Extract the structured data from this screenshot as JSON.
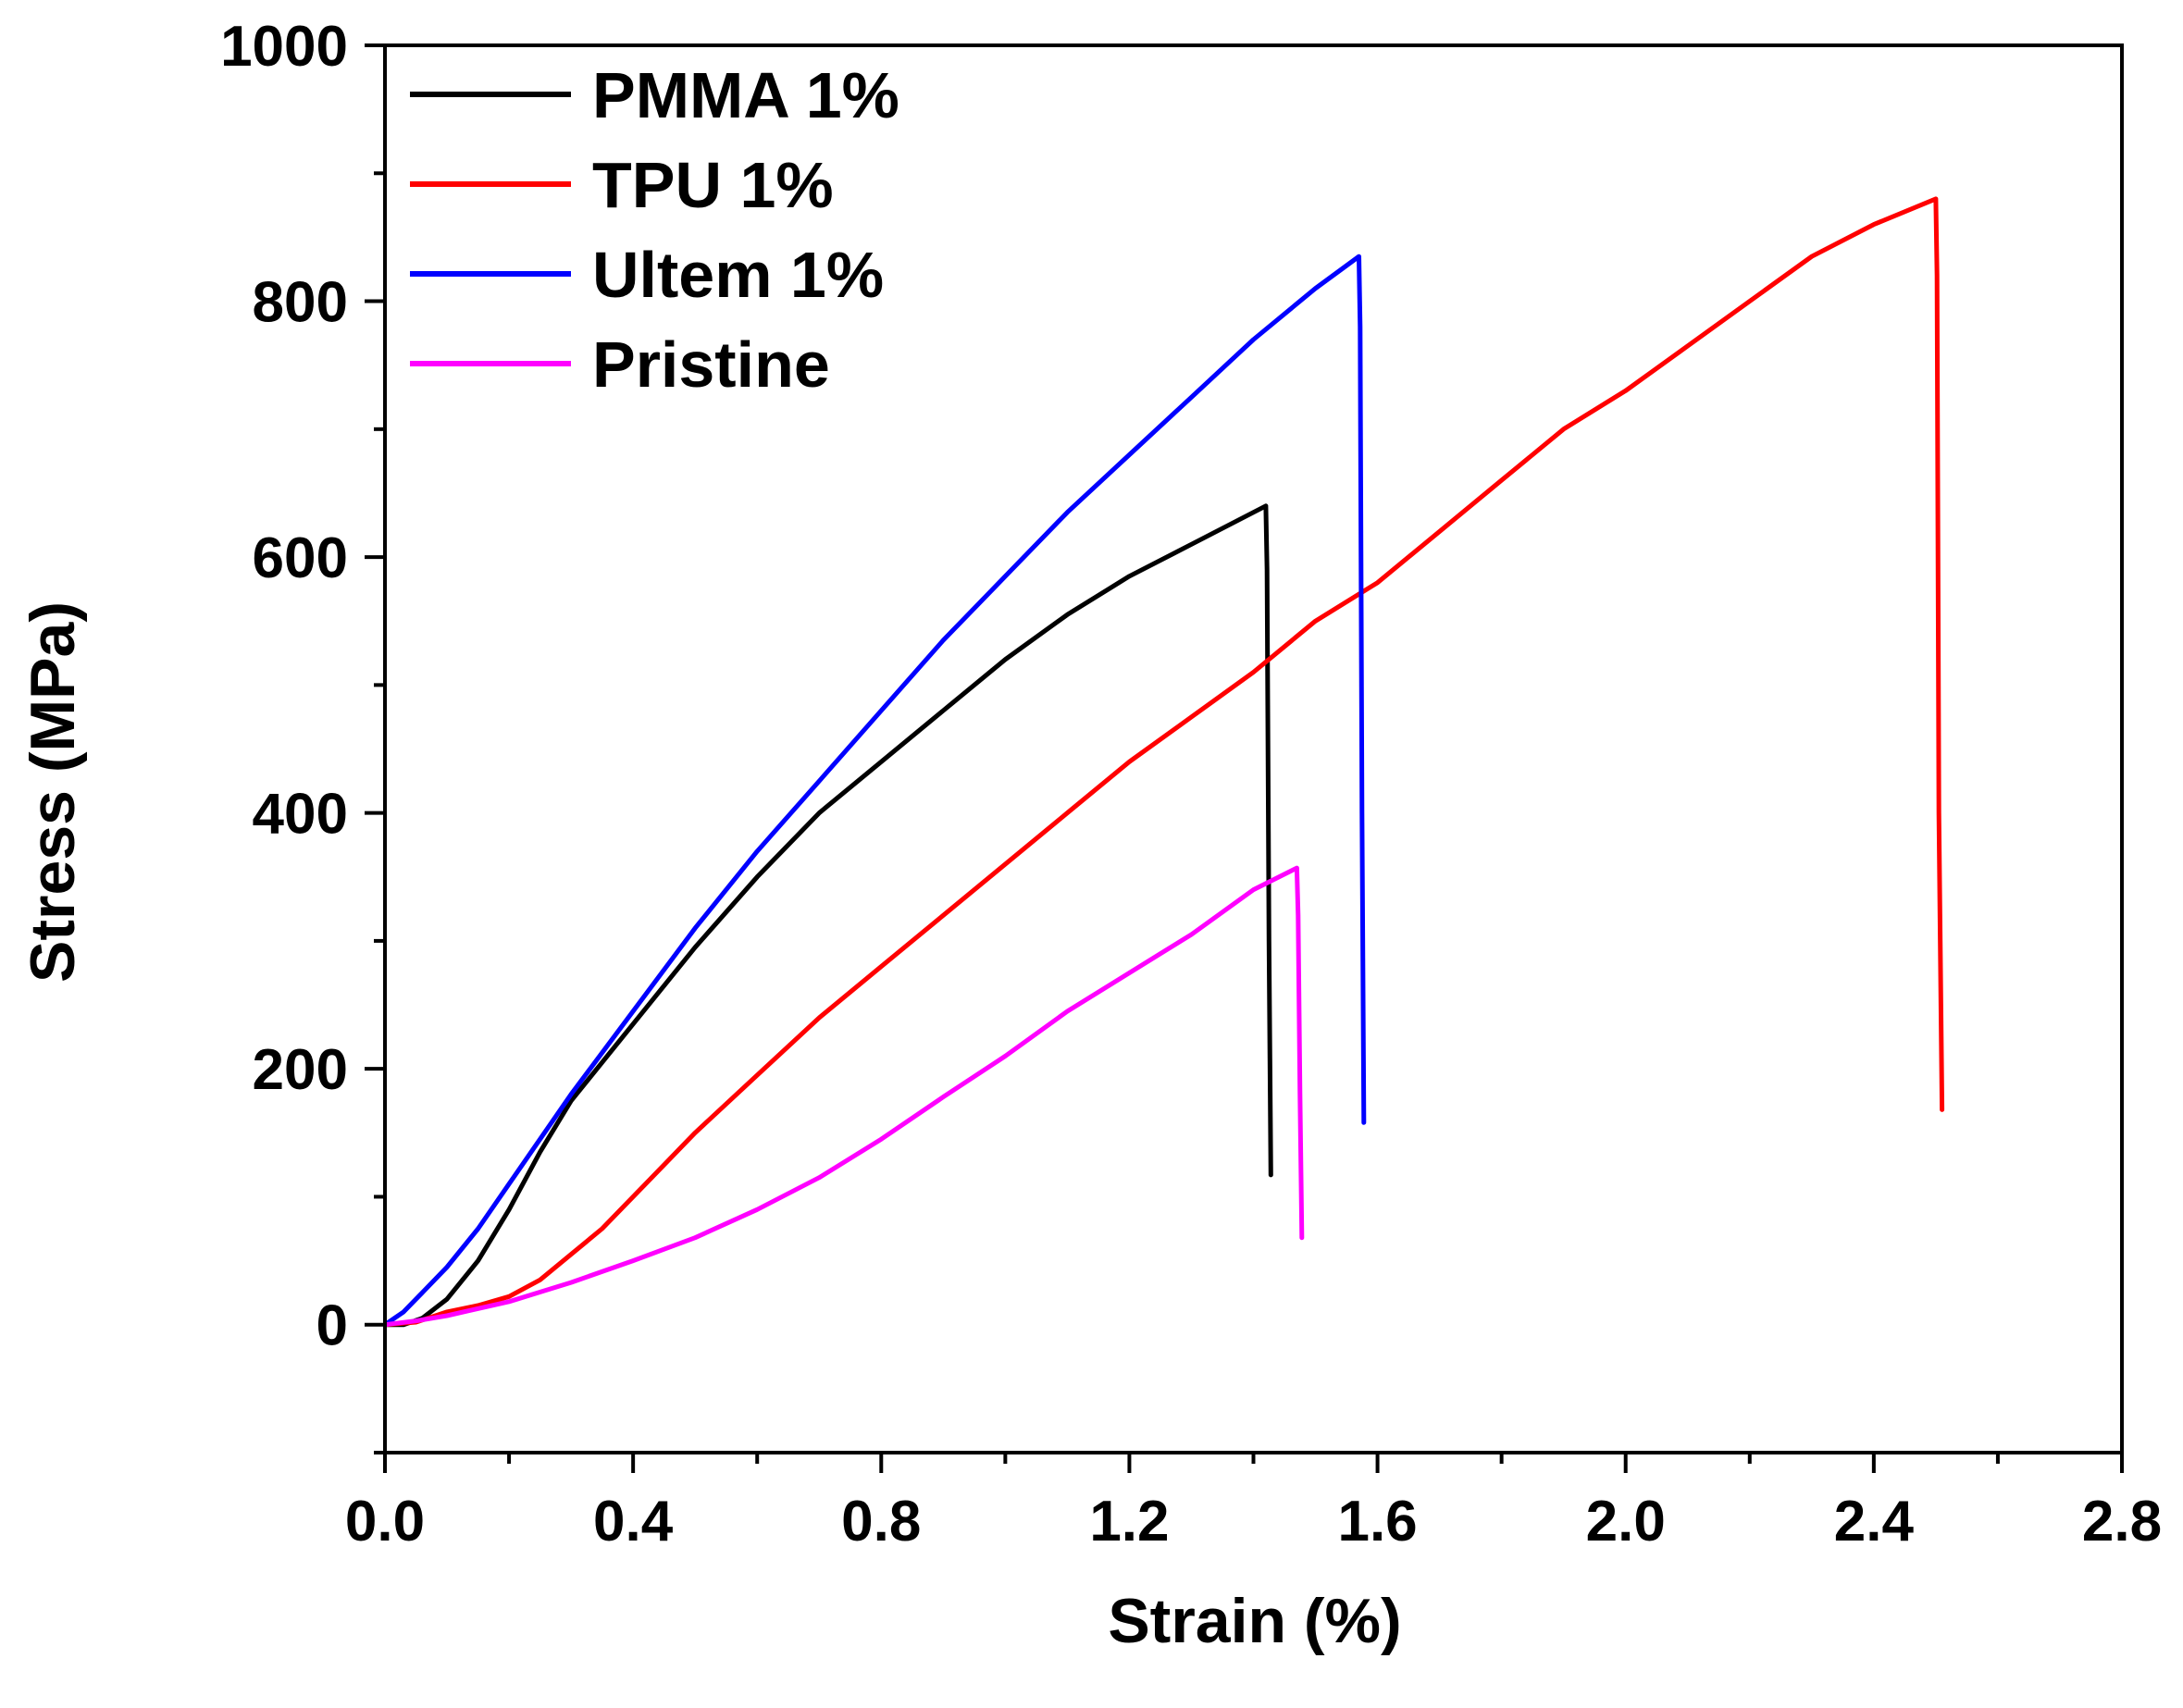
{
  "chart_data": {
    "type": "line",
    "title": "",
    "xlabel": "Strain (%)",
    "ylabel": "Stress (MPa)",
    "xlim": [
      0.0,
      2.8
    ],
    "ylim": [
      -100,
      1000
    ],
    "xticks": [
      0.0,
      0.4,
      0.8,
      1.2,
      1.6,
      2.0,
      2.4,
      2.8
    ],
    "xtick_labels": [
      "0.0",
      "0.4",
      "0.8",
      "1.2",
      "1.6",
      "2.0",
      "2.4",
      "2.8"
    ],
    "yticks": [
      0,
      200,
      400,
      600,
      800,
      1000
    ],
    "ytick_labels": [
      "0",
      "200",
      "400",
      "600",
      "800",
      "1000"
    ],
    "grid": false,
    "legend_position": "top-left",
    "series": [
      {
        "name": "PMMA 1%",
        "color": "#000000",
        "x": [
          0.0,
          0.03,
          0.06,
          0.1,
          0.15,
          0.2,
          0.25,
          0.3,
          0.35,
          0.4,
          0.5,
          0.6,
          0.7,
          0.8,
          0.9,
          1.0,
          1.1,
          1.2,
          1.3,
          1.42,
          1.422,
          1.425,
          1.428
        ],
        "y": [
          0,
          0,
          5,
          20,
          50,
          90,
          135,
          175,
          205,
          235,
          295,
          350,
          400,
          440,
          480,
          520,
          555,
          585,
          610,
          640,
          590,
          300,
          117
        ]
      },
      {
        "name": "TPU 1%",
        "color": "#ff0000",
        "x": [
          0.0,
          0.05,
          0.1,
          0.15,
          0.2,
          0.25,
          0.3,
          0.35,
          0.4,
          0.45,
          0.5,
          0.6,
          0.7,
          0.8,
          0.9,
          1.0,
          1.1,
          1.2,
          1.3,
          1.4,
          1.5,
          1.6,
          1.7,
          1.8,
          1.9,
          2.0,
          2.1,
          2.2,
          2.3,
          2.4,
          2.5,
          2.502,
          2.505,
          2.51
        ],
        "y": [
          0,
          2,
          10,
          15,
          22,
          35,
          55,
          75,
          100,
          125,
          150,
          195,
          240,
          280,
          320,
          360,
          400,
          440,
          475,
          510,
          550,
          580,
          620,
          660,
          700,
          730,
          765,
          800,
          835,
          860,
          880,
          820,
          400,
          168
        ]
      },
      {
        "name": "Ultem 1%",
        "color": "#0000ff",
        "x": [
          0.0,
          0.03,
          0.06,
          0.1,
          0.15,
          0.2,
          0.3,
          0.4,
          0.5,
          0.6,
          0.7,
          0.8,
          0.9,
          1.0,
          1.1,
          1.2,
          1.3,
          1.4,
          1.5,
          1.57,
          1.572,
          1.575,
          1.578
        ],
        "y": [
          0,
          10,
          25,
          45,
          75,
          110,
          180,
          245,
          310,
          370,
          425,
          480,
          535,
          585,
          635,
          680,
          725,
          770,
          810,
          835,
          780,
          400,
          158
        ]
      },
      {
        "name": "Pristine",
        "color": "#ff00ff",
        "x": [
          0.0,
          0.05,
          0.1,
          0.2,
          0.3,
          0.4,
          0.5,
          0.6,
          0.7,
          0.8,
          0.9,
          1.0,
          1.1,
          1.2,
          1.25,
          1.3,
          1.4,
          1.47,
          1.472,
          1.475,
          1.478
        ],
        "y": [
          0,
          3,
          7,
          18,
          33,
          50,
          68,
          90,
          115,
          145,
          178,
          210,
          245,
          275,
          290,
          305,
          340,
          357,
          320,
          180,
          68
        ]
      }
    ]
  }
}
